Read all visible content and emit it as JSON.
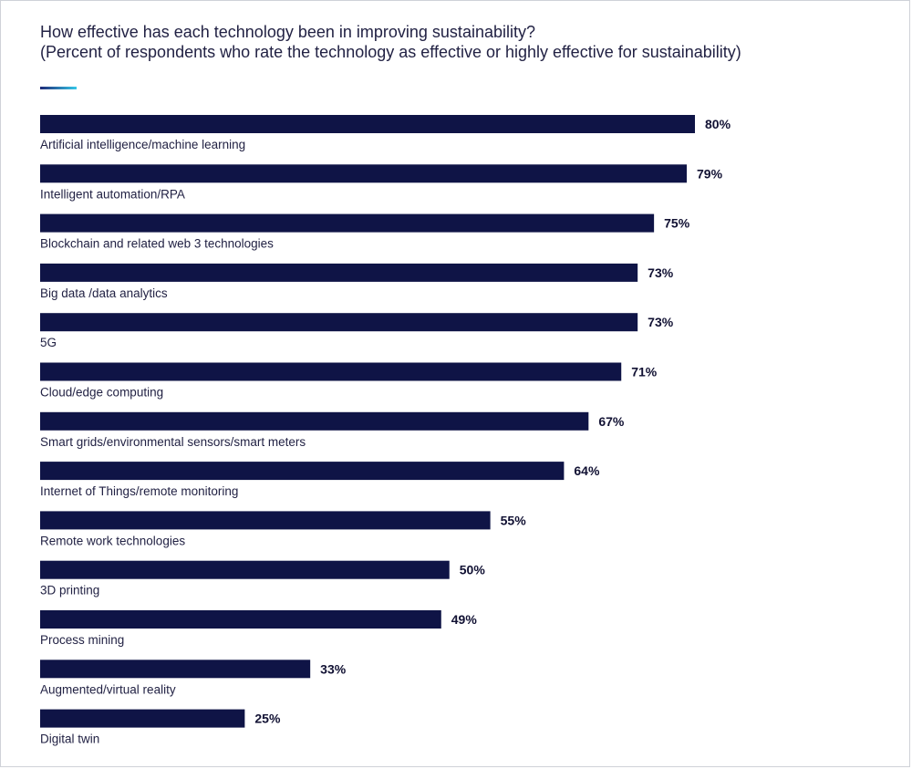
{
  "title_line1": "How effective has each technology been in improving sustainability?",
  "title_line2": "(Percent of respondents who rate the technology as effective or highly effective for sustainability)",
  "colors": {
    "bar": "#0f1446",
    "accent_start": "#1e2a78",
    "accent_end": "#36c8e8"
  },
  "chart_data": {
    "type": "bar",
    "orientation": "horizontal",
    "title": "How effective has each technology been in improving sustainability? (Percent of respondents who rate the technology as effective or highly effective for sustainability)",
    "categories": [
      "Artificial intelligence/machine learning",
      "Intelligent automation/RPA",
      "Blockchain and related web 3 technologies",
      "Big data /data analytics",
      "5G",
      "Cloud/edge computing",
      "Smart grids/environmental sensors/smart meters",
      "Internet of Things/remote monitoring",
      "Remote work technologies",
      "3D printing",
      "Process mining",
      "Augmented/virtual reality",
      "Digital twin"
    ],
    "values": [
      80,
      79,
      75,
      73,
      73,
      71,
      67,
      64,
      55,
      50,
      49,
      33,
      25
    ],
    "value_labels": [
      "80%",
      "79%",
      "75%",
      "73%",
      "73%",
      "71%",
      "67%",
      "64%",
      "55%",
      "50%",
      "49%",
      "33%",
      "25%"
    ],
    "unit": "%",
    "xlim": [
      0,
      100
    ],
    "grid": false,
    "legend": "none"
  }
}
